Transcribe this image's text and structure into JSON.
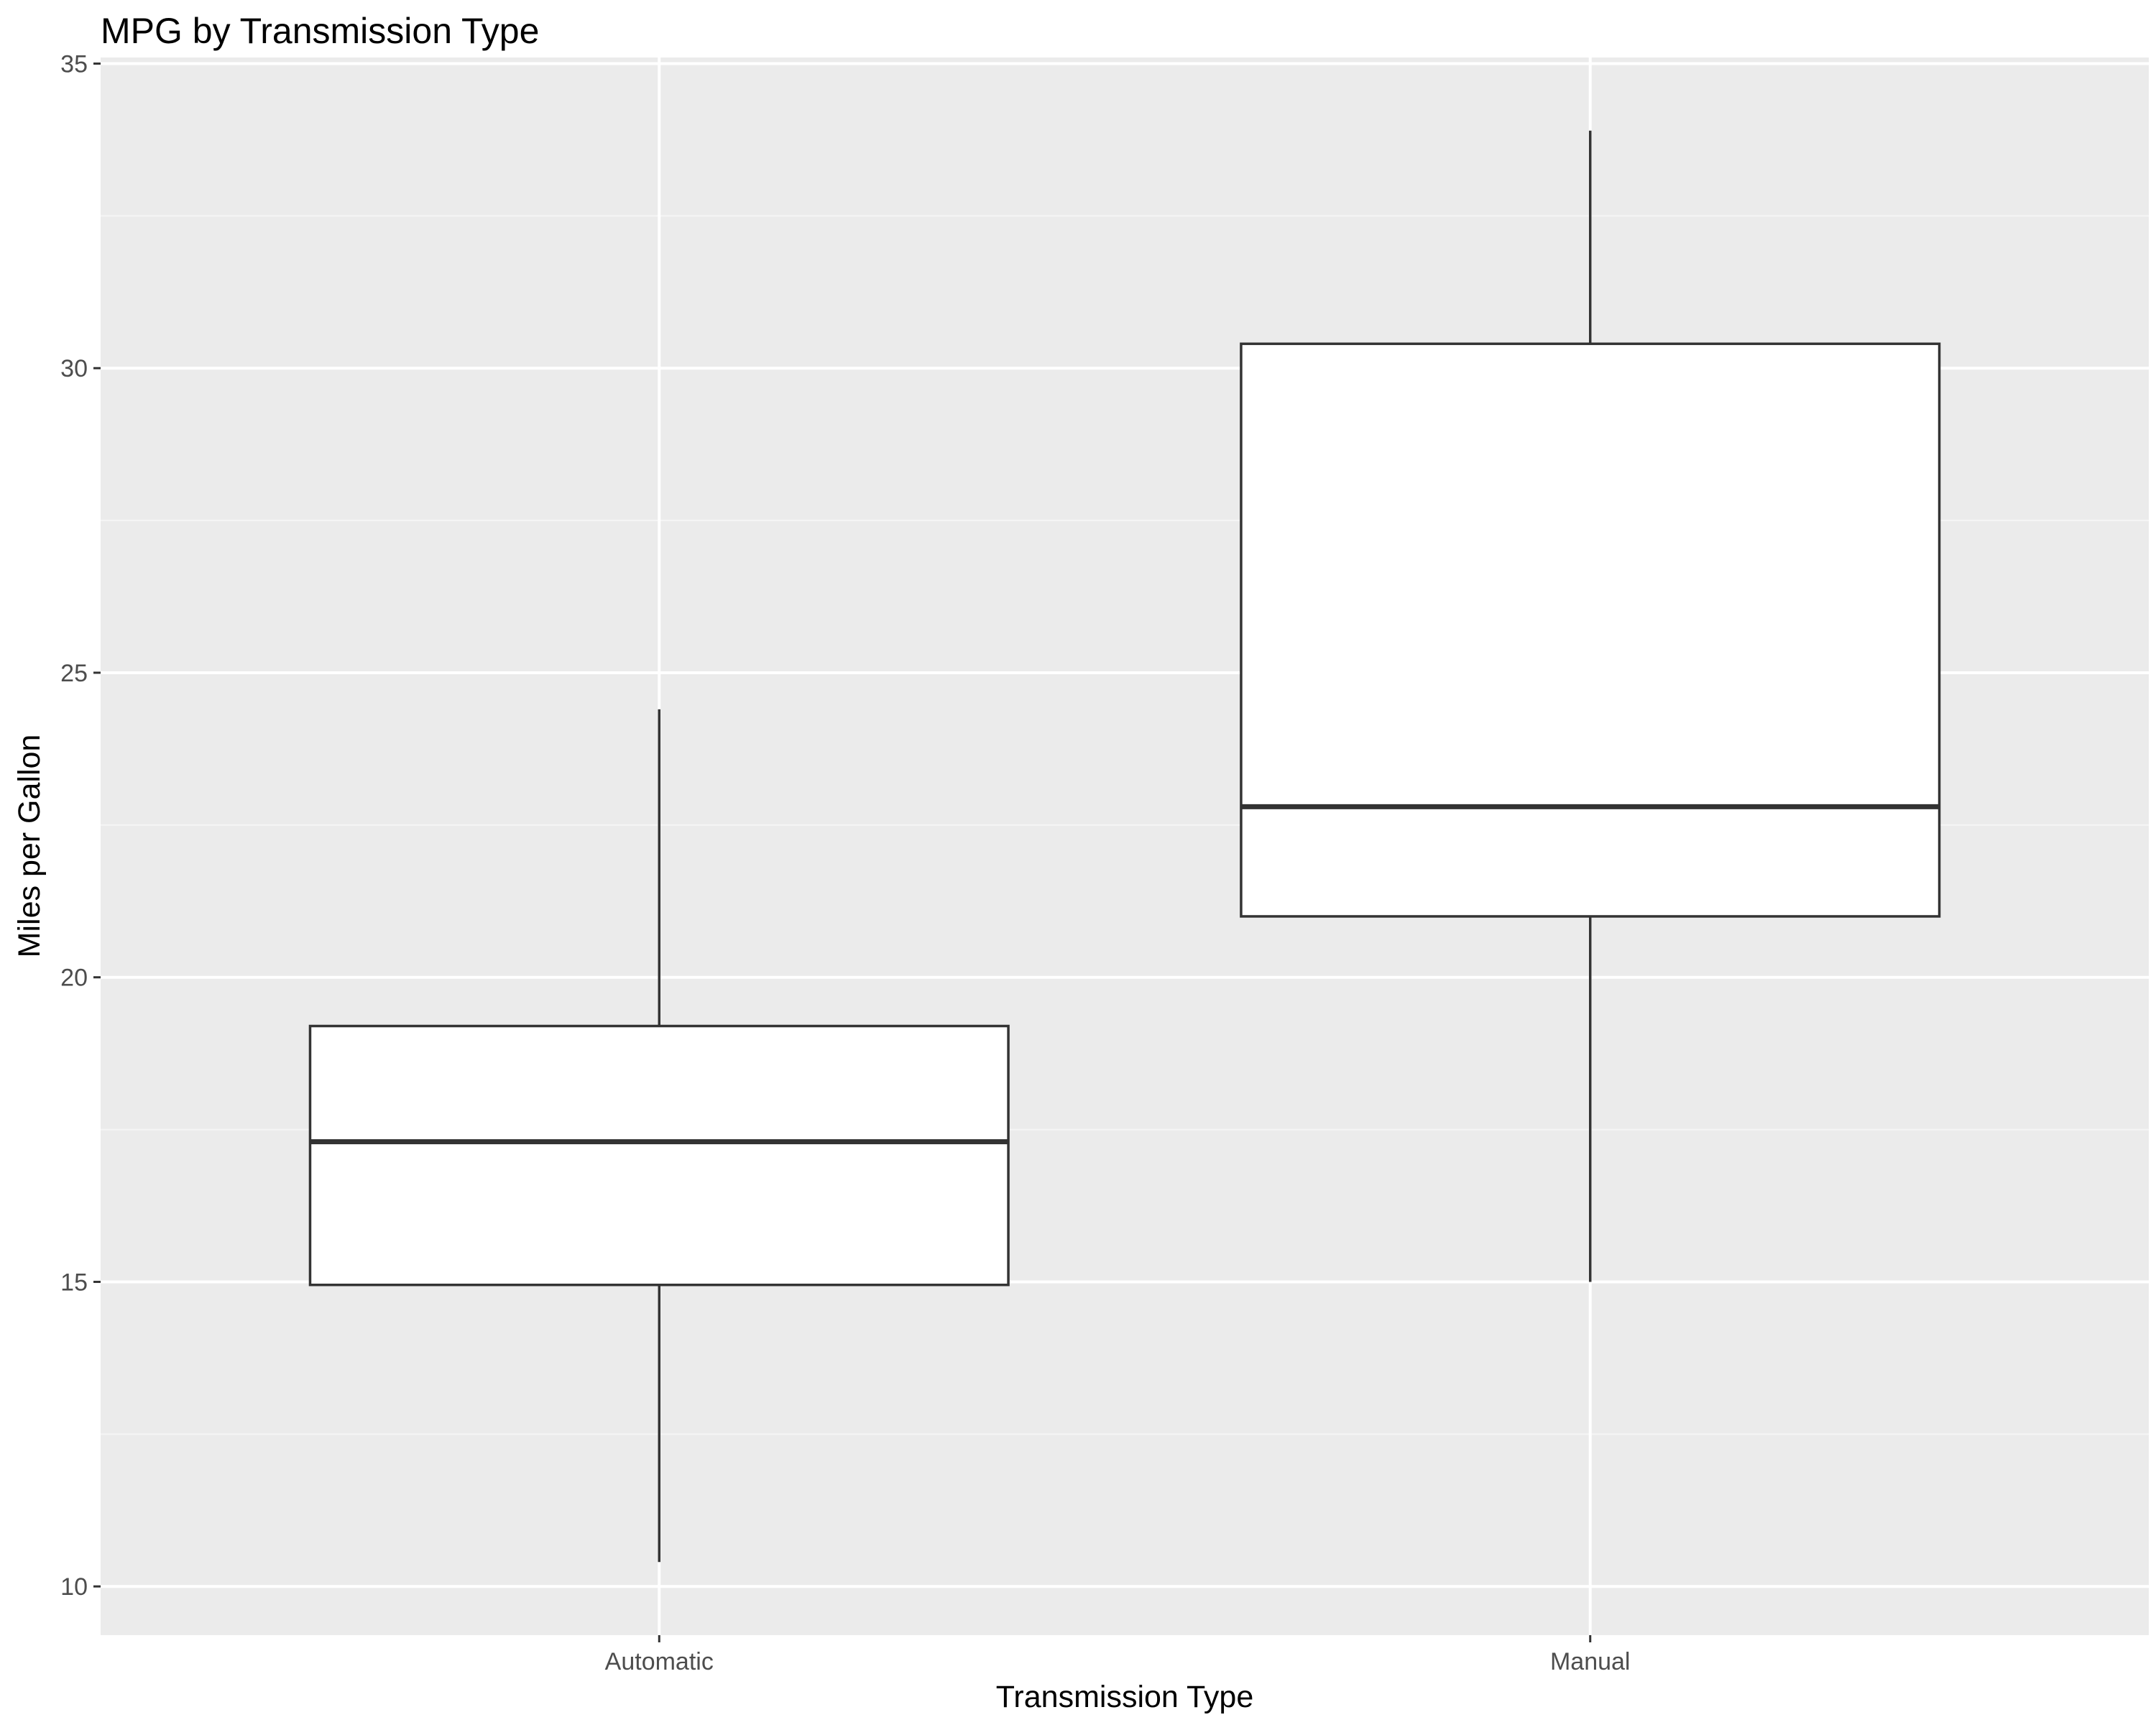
{
  "chart_data": {
    "type": "boxplot",
    "title": "MPG by Transmission Type",
    "xlabel": "Transmission Type",
    "ylabel": "Miles per Gallon",
    "categories": [
      "Automatic",
      "Manual"
    ],
    "boxes": [
      {
        "category": "Automatic",
        "min": 10.4,
        "q1": 14.95,
        "median": 17.3,
        "q3": 19.2,
        "max": 24.4
      },
      {
        "category": "Manual",
        "min": 15.0,
        "q1": 21.0,
        "median": 22.8,
        "q3": 30.4,
        "max": 33.9
      }
    ],
    "ylim": [
      9.2,
      35.1
    ],
    "y_ticks": [
      10,
      15,
      20,
      25,
      30,
      35
    ],
    "y_tick_labels": [
      "10",
      "15",
      "20",
      "25",
      "30",
      "35"
    ],
    "grid": true,
    "legend": "none",
    "colors": {
      "panel_background": "#ebebeb",
      "grid_major": "#ffffff",
      "grid_minor": "#f5f5f5",
      "box_fill": "#ffffff",
      "box_stroke": "#333333",
      "tick_color": "#333333"
    }
  }
}
